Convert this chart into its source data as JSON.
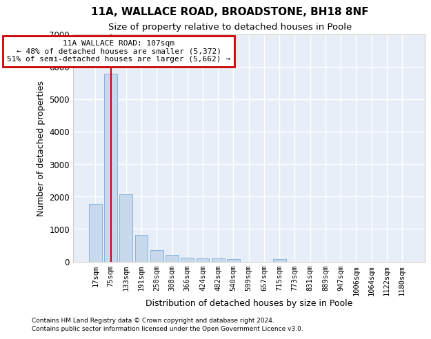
{
  "title": "11A, WALLACE ROAD, BROADSTONE, BH18 8NF",
  "subtitle": "Size of property relative to detached houses in Poole",
  "xlabel": "Distribution of detached houses by size in Poole",
  "ylabel": "Number of detached properties",
  "bar_color": "#c8d9ee",
  "bar_edge_color": "#7aadd4",
  "vline_color": "#cc0000",
  "vline_x": 1,
  "annotation_title": "11A WALLACE ROAD: 107sqm",
  "annotation_line1": "← 48% of detached houses are smaller (5,372)",
  "annotation_line2": "51% of semi-detached houses are larger (5,662) →",
  "annotation_box_color": "#cc0000",
  "footnote1": "Contains HM Land Registry data © Crown copyright and database right 2024.",
  "footnote2": "Contains public sector information licensed under the Open Government Licence v3.0.",
  "categories": [
    "17sqm",
    "75sqm",
    "133sqm",
    "191sqm",
    "250sqm",
    "308sqm",
    "366sqm",
    "424sqm",
    "482sqm",
    "540sqm",
    "599sqm",
    "657sqm",
    "715sqm",
    "773sqm",
    "831sqm",
    "889sqm",
    "947sqm",
    "1006sqm",
    "1064sqm",
    "1122sqm",
    "1180sqm"
  ],
  "values": [
    1780,
    5780,
    2060,
    820,
    360,
    210,
    120,
    105,
    95,
    70,
    0,
    0,
    65,
    0,
    0,
    0,
    0,
    0,
    0,
    0,
    0
  ],
  "ylim": [
    0,
    7000
  ],
  "yticks": [
    0,
    1000,
    2000,
    3000,
    4000,
    5000,
    6000,
    7000
  ],
  "background_color": "#e8eef8",
  "grid_color": "#ffffff",
  "title_fontsize": 11,
  "subtitle_fontsize": 9.5,
  "tick_fontsize": 7.5,
  "label_fontsize": 9,
  "footnote_fontsize": 6.5
}
